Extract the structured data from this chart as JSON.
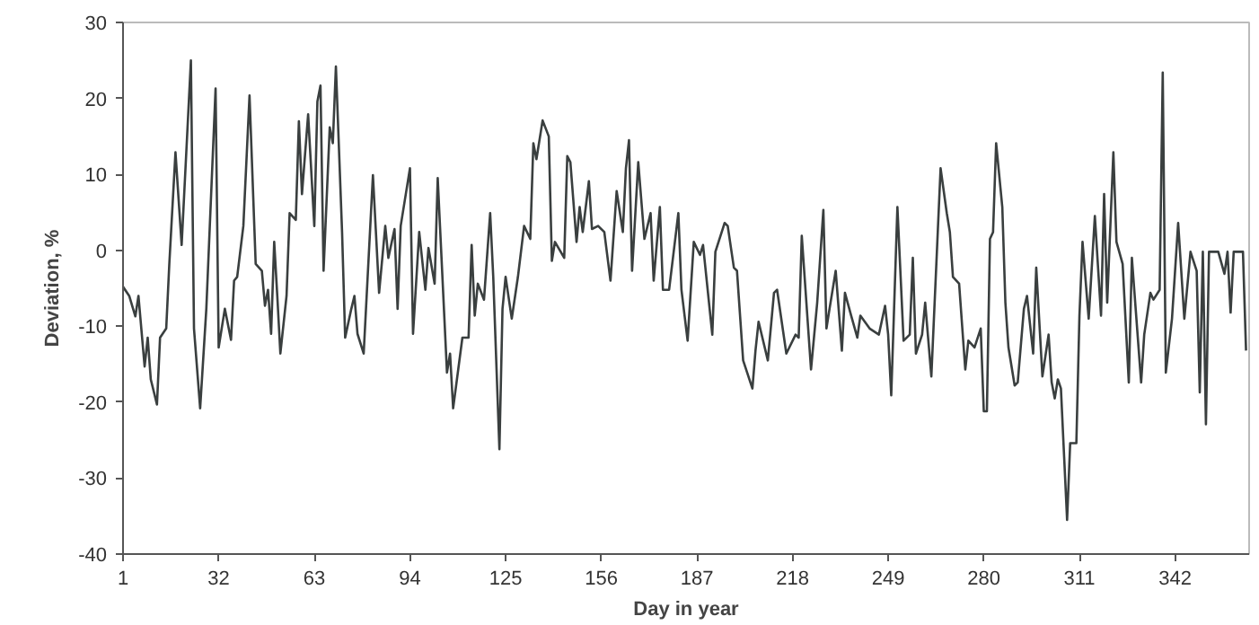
{
  "chart_data": {
    "type": "line",
    "xlabel": "Day in year",
    "ylabel": "Deviation, %",
    "xlim": [
      1,
      366
    ],
    "ylim": [
      -40,
      30
    ],
    "xticks": [
      1,
      32,
      63,
      94,
      125,
      156,
      187,
      218,
      249,
      280,
      311,
      342
    ],
    "yticks": [
      -40,
      -30,
      -20,
      -10,
      0,
      10,
      20,
      30
    ],
    "grid": false,
    "line_style": "solid",
    "marker": "none",
    "series": [
      {
        "color": "#3a3f3f",
        "x": [
          1,
          3,
          5,
          6,
          8,
          9,
          10,
          12,
          13,
          15,
          16,
          18,
          20,
          23,
          24,
          26,
          28,
          31,
          32,
          34,
          36,
          37,
          38,
          40,
          42,
          44,
          46,
          47,
          48,
          49,
          50,
          51,
          52,
          54,
          55,
          57,
          58,
          59,
          61,
          63,
          64,
          65,
          66,
          68,
          69,
          70,
          72,
          73,
          75,
          76,
          77,
          79,
          82,
          84,
          86,
          87,
          89,
          90,
          91,
          94,
          95,
          97,
          99,
          100,
          102,
          103,
          106,
          107,
          108,
          111,
          113,
          114,
          115,
          116,
          118,
          120,
          121,
          123,
          124,
          125,
          127,
          129,
          131,
          133,
          134,
          135,
          137,
          139,
          140,
          141,
          144,
          145,
          146,
          148,
          149,
          150,
          152,
          153,
          155,
          157,
          159,
          161,
          163,
          164,
          165,
          166,
          168,
          170,
          172,
          173,
          175,
          176,
          178,
          181,
          182,
          184,
          186,
          188,
          189,
          192,
          193,
          196,
          197,
          199,
          200,
          202,
          205,
          206,
          207,
          210,
          212,
          213,
          216,
          219,
          220,
          221,
          224,
          226,
          228,
          229,
          230,
          232,
          234,
          235,
          237,
          239,
          240,
          243,
          246,
          248,
          249,
          250,
          252,
          254,
          256,
          257,
          258,
          260,
          261,
          263,
          266,
          268,
          269,
          270,
          272,
          274,
          275,
          277,
          279,
          280,
          281,
          282,
          283,
          284,
          286,
          287,
          288,
          290,
          291,
          293,
          294,
          296,
          297,
          299,
          301,
          302,
          303,
          304,
          305,
          307,
          308,
          310,
          311,
          312,
          314,
          316,
          318,
          319,
          320,
          322,
          323,
          325,
          327,
          328,
          331,
          332,
          334,
          335,
          337,
          338,
          339,
          341,
          343,
          345,
          347,
          349,
          350,
          351,
          352,
          353,
          356,
          358,
          359,
          360,
          361,
          364,
          365
        ],
        "values": [
          -4.8,
          -6,
          -8.7,
          -6,
          -15.3,
          -11.5,
          -17,
          -20.3,
          -11.5,
          -10.3,
          -1.8,
          12.9,
          0.7,
          25,
          -10.3,
          -20.8,
          -7.7,
          21.3,
          -12.8,
          -7.7,
          -11.8,
          -4,
          -3.5,
          3.2,
          20.4,
          -1.8,
          -2.7,
          -7.3,
          -5.2,
          -11,
          1.1,
          -6,
          -13.6,
          -6,
          4.9,
          4,
          17,
          7.4,
          17.9,
          3.2,
          19.6,
          21.7,
          -2.7,
          16.2,
          14.1,
          24.2,
          2.4,
          -11.5,
          -7.7,
          -6,
          -11,
          -13.6,
          9.9,
          -5.6,
          3.2,
          -1,
          2.8,
          -7.7,
          3.2,
          10.8,
          -11,
          2.4,
          -5.2,
          0.3,
          -4.4,
          9.5,
          -16.1,
          -13.6,
          -20.8,
          -11.5,
          -11.5,
          0.7,
          -8.6,
          -4.4,
          -6.5,
          4.9,
          -3.5,
          -26.2,
          -7.7,
          -3.5,
          -9,
          -3.5,
          3.2,
          1.5,
          14.1,
          12,
          17.1,
          15,
          -1.4,
          1.1,
          -1,
          12.4,
          11.6,
          1.1,
          5.7,
          2.4,
          9.1,
          2.8,
          3.2,
          2.4,
          -4,
          7.8,
          2.4,
          10.8,
          14.5,
          -2.7,
          11.6,
          1.5,
          4.9,
          -4,
          5.7,
          -5.2,
          -5.2,
          4.9,
          -5.2,
          -11.9,
          1.1,
          -0.6,
          0.7,
          -11.1,
          -0.2,
          3.6,
          3.2,
          -2.3,
          -2.7,
          -14.5,
          -18.2,
          -13.2,
          -9.4,
          -14.5,
          -5.6,
          -5.2,
          -13.6,
          -11.1,
          -11.5,
          1.9,
          -15.7,
          -6.9,
          5.3,
          -10.3,
          -7.7,
          -2.7,
          -13.2,
          -5.6,
          -8.6,
          -11.5,
          -8.6,
          -10.3,
          -11.1,
          -7.3,
          -11.1,
          -19.1,
          5.7,
          -11.9,
          -11.1,
          -1,
          -13.6,
          -11.1,
          -6.9,
          -16.6,
          10.8,
          4.9,
          2.4,
          -3.5,
          -4.4,
          -15.7,
          -11.9,
          -12.8,
          -10.3,
          -21.2,
          -21.2,
          1.5,
          2.4,
          14.1,
          5.7,
          -6.9,
          -12.8,
          -17.8,
          -17.4,
          -7.7,
          -6,
          -13.6,
          -2.3,
          -16.6,
          -11.1,
          -17.4,
          -19.5,
          -17,
          -18.2,
          -35.5,
          -25.4,
          -25.4,
          -8.6,
          1.1,
          -9,
          4.5,
          -8.6,
          7.4,
          -6.9,
          12.9,
          1.1,
          -1.8,
          -17.4,
          -1,
          -17.4,
          -11.1,
          -5.6,
          -6.5,
          -5.2,
          23.4,
          -16.1,
          -9,
          3.6,
          -9,
          -0.2,
          -2.7,
          -18.7,
          -0.2,
          -22.9,
          -0.2,
          -0.2,
          -3.1,
          -0.2,
          -8.2,
          -0.2,
          -0.2,
          -13.2
        ]
      }
    ]
  }
}
